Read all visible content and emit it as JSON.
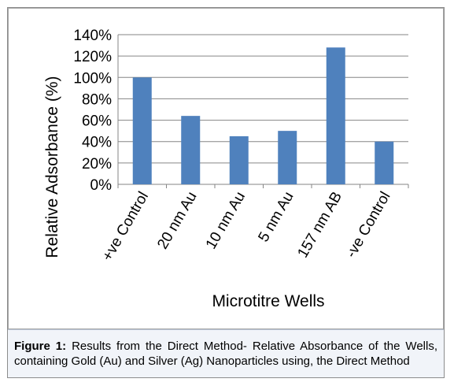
{
  "chart_data": {
    "type": "bar",
    "categories": [
      "+ve Control",
      "20 nm Au",
      "10 nm Au",
      "5 nm Au",
      "157 nm AB",
      "-ve Control"
    ],
    "values": [
      100,
      64,
      45,
      50,
      128,
      40
    ],
    "title": "",
    "xlabel": "Microtitre Wells",
    "ylabel": "Relative Adsorbance (%)",
    "ylim": [
      0,
      140
    ],
    "yticks": [
      0,
      20,
      40,
      60,
      80,
      100,
      120,
      140
    ],
    "ytick_format": "percent",
    "grid": true,
    "legend": "none",
    "bar_color": "#4f81bd"
  },
  "caption": {
    "lead": "Figure 1:",
    "text": " Results from the Direct Method- Relative Absorbance of the Wells, containing Gold (Au) and Silver (Ag) Nanoparticles using, the Direct Method"
  }
}
